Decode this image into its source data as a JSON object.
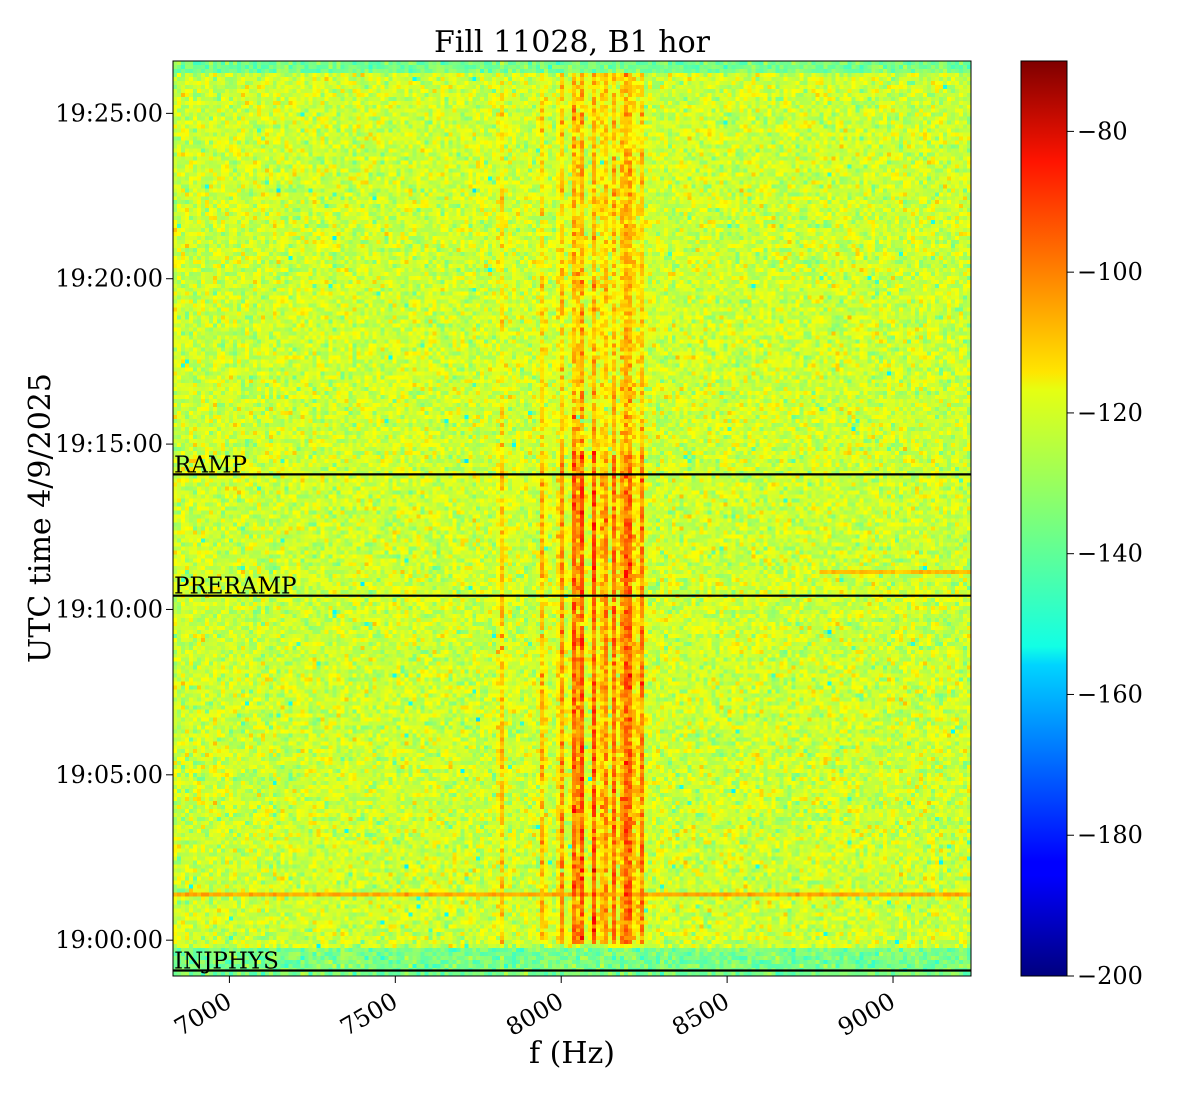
{
  "chart_data": {
    "type": "heatmap",
    "title": "Fill 11028, B1 hor",
    "xlabel": "f (Hz)",
    "ylabel": "UTC time 4/9/2025",
    "xlim": [
      6830,
      9235
    ],
    "ylim": [
      "18:58:55",
      "19:26:35"
    ],
    "x_ticks": [
      7000,
      7500,
      8000,
      8500,
      9000
    ],
    "x_tick_labels": [
      "7000",
      "7500",
      "8000",
      "8500",
      "9000"
    ],
    "y_ticks": [
      "19:00:00",
      "19:05:00",
      "19:10:00",
      "19:15:00",
      "19:20:00",
      "19:25:00"
    ],
    "colormap": "jet",
    "colorbar": {
      "range": [
        -200,
        -70
      ],
      "ticks": [
        -80,
        -100,
        -120,
        -140,
        -160,
        -180,
        -200
      ],
      "tick_labels": [
        "−80",
        "−100",
        "−120",
        "−140",
        "−160",
        "−180",
        "−200"
      ]
    },
    "background_level_db": -125,
    "spectral_lines": [
      {
        "f_hz": 7820,
        "peak_db": -112
      },
      {
        "f_hz": 7945,
        "peak_db": -109
      },
      {
        "f_hz": 8000,
        "peak_db": -104
      },
      {
        "f_hz": 8040,
        "peak_db": -98
      },
      {
        "f_hz": 8060,
        "peak_db": -95
      },
      {
        "f_hz": 8100,
        "peak_db": -97
      },
      {
        "f_hz": 8130,
        "peak_db": -99
      },
      {
        "f_hz": 8160,
        "peak_db": -101
      },
      {
        "f_hz": 8190,
        "peak_db": -93
      },
      {
        "f_hz": 8210,
        "peak_db": -97
      },
      {
        "f_hz": 8240,
        "peak_db": -101
      }
    ],
    "events": [
      {
        "label": "RAMP",
        "time": "19:14:05"
      },
      {
        "label": "PRERAMP",
        "time": "19:10:25"
      },
      {
        "label": "INJPHYS",
        "time": "18:59:05"
      }
    ]
  }
}
